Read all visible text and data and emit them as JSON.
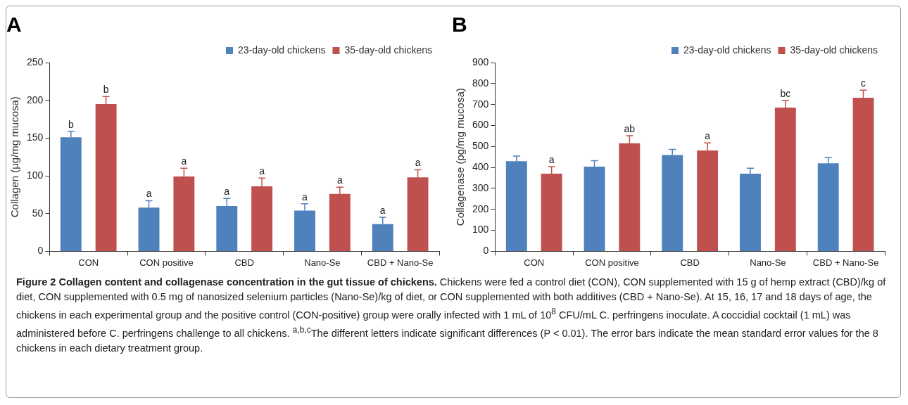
{
  "chart_data": [
    {
      "type": "bar",
      "title": "A",
      "ylabel": "Collagen (μg/mg mucosa)",
      "categories": [
        "CON",
        "CON positive",
        "CBD",
        "Nano-Se",
        "CBD + Nano-Se"
      ],
      "series": [
        {
          "name": "23-day-old chickens",
          "color": "#4f81bd",
          "values": [
            151,
            58,
            60,
            54,
            36
          ],
          "errors": [
            [
              151,
              159
            ],
            [
              58,
              67
            ],
            [
              60,
              70
            ],
            [
              54,
              63
            ],
            [
              36,
              45
            ]
          ],
          "value_labels": [
            "b",
            "a",
            "a",
            "a",
            "a"
          ]
        },
        {
          "name": "35-day-old chickens",
          "color": "#c0504d",
          "values": [
            195,
            99,
            86,
            76,
            98
          ],
          "errors": [
            [
              195,
              205
            ],
            [
              99,
              110
            ],
            [
              86,
              97
            ],
            [
              76,
              85
            ],
            [
              98,
              108
            ]
          ],
          "value_labels": [
            "b",
            "a",
            "a",
            "a",
            "a"
          ]
        }
      ],
      "ylim": [
        0,
        250
      ],
      "yticks": [
        0,
        50,
        100,
        150,
        200,
        250
      ],
      "grid": false,
      "legend": "top right"
    },
    {
      "type": "bar",
      "title": "B",
      "ylabel": "Collagenase (pg/mg mucosa)",
      "categories": [
        "CON",
        "CON positive",
        "CBD",
        "Nano-Se",
        "CBD + Nano-Se"
      ],
      "series": [
        {
          "name": "23-day-old chickens",
          "color": "#4f81bd",
          "values": [
            430,
            404,
            459,
            370,
            420
          ],
          "errors": [
            [
              430,
              454
            ],
            [
              404,
              432
            ],
            [
              459,
              486
            ],
            [
              370,
              396
            ],
            [
              420,
              447
            ]
          ]
        },
        {
          "name": "35-day-old chickens",
          "color": "#c0504d",
          "values": [
            370,
            515,
            481,
            685,
            732
          ],
          "errors": [
            [
              370,
              404
            ],
            [
              515,
              551
            ],
            [
              481,
              517
            ],
            [
              685,
              720
            ],
            [
              732,
              768
            ]
          ],
          "value_labels": [
            "a",
            "ab",
            "a",
            "bc",
            "c"
          ]
        }
      ],
      "ylim": [
        0,
        900
      ],
      "yticks": [
        0,
        100,
        200,
        300,
        400,
        500,
        600,
        700,
        800,
        900
      ],
      "grid": false,
      "legend": "top right"
    },
    {
      "type": "other",
      "title": "Figure 2  Collagen content and collagenase concentration in the gut tissue of chickens.",
      "annotations": [
        "Chickens were fed a control diet (CON), CON supplemented with 15 g of hemp extract (CBD)/kg of diet, CON supplemented with 0.5 mg of nanosized selenium particles (Nano-Se)/kg of diet, or CON supplemented with both additives (CBD + Nano-Se). At 15, 16, 17 and 18 days of age, the chickens in each experimental group and the positive control (CON-positive) group were orally infected with 1 mL of 10$^{8}$ CFU/mL C. perfringens inoculate. A coccidial cocktail (1 mL) was administered before C. perfringens challenge to all chickens. $^{a,b,c}$The different letters indicate significant differences (P < 0.01). The error bars indicate the mean standard error values for the 8 chickens in each dietary treatment group."
      ]
    }
  ]
}
